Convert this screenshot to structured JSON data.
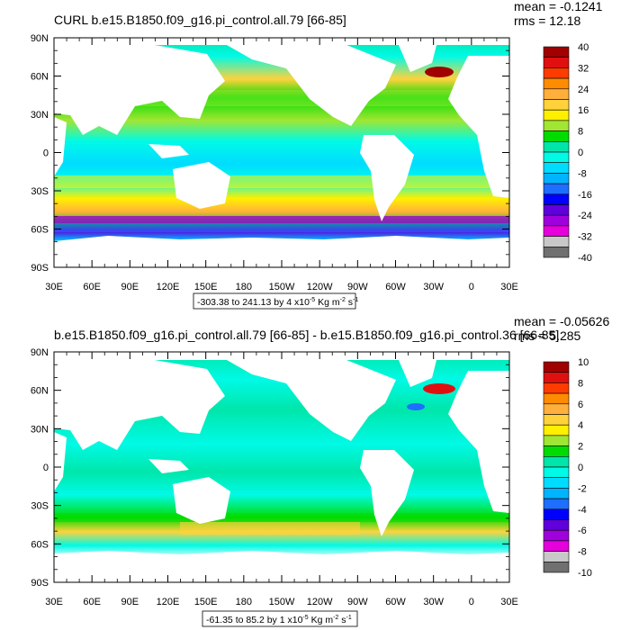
{
  "chart_data": [
    {
      "type": "heatmap",
      "title": "CURL b.e15.B1850.f09_g16.pi_control.all.79 [66-85]",
      "stats": {
        "mean": "mean = -0.1241",
        "rms": "rms = 12.18"
      },
      "y_ticks": [
        "90N",
        "60N",
        "30N",
        "0",
        "30S",
        "60S",
        "90S"
      ],
      "x_ticks": [
        "30E",
        "60E",
        "90E",
        "120E",
        "150E",
        "180",
        "150W",
        "120W",
        "90W",
        "60W",
        "30W",
        "0",
        "30E"
      ],
      "contour_info": "-303.38 to 241.13 by 4 x10",
      "contour_exp": "-5",
      "contour_units_a": " Kg m",
      "contour_units_exp_a": "-2",
      "contour_units_b": " s",
      "contour_units_exp_b": "-1",
      "colorbar": {
        "labels": [
          "40",
          "32",
          "24",
          "16",
          "8",
          "0",
          "-8",
          "-16",
          "-24",
          "-32",
          "-40"
        ],
        "colors": [
          "#a00000",
          "#e01010",
          "#ff3c00",
          "#ff8c00",
          "#ffb03c",
          "#ffd23c",
          "#fff000",
          "#a0e632",
          "#00dc00",
          "#00e6aa",
          "#00fae6",
          "#00dcff",
          "#00b4ff",
          "#1e6eff",
          "#0000ff",
          "#6000dc",
          "#a000dc",
          "#e600dc",
          "#c8c8c8",
          "#707070"
        ]
      },
      "land_color": "#ffffff"
    },
    {
      "type": "heatmap",
      "title": "b.e15.B1850.f09_g16.pi_control.all.79 [66-85] - b.e15.B1850.f09_g16.pi_control.36 [66-85]",
      "stats": {
        "mean": "mean = -0.05626",
        "rms": "rms = 5.285"
      },
      "y_ticks": [
        "90N",
        "60N",
        "30N",
        "0",
        "30S",
        "60S",
        "90S"
      ],
      "x_ticks": [
        "30E",
        "60E",
        "90E",
        "120E",
        "150E",
        "180",
        "150W",
        "120W",
        "90W",
        "60W",
        "30W",
        "0",
        "30E"
      ],
      "contour_info": "-61.35 to 85.2 by 1 x10",
      "contour_exp": "-5",
      "contour_units_a": " Kg m",
      "contour_units_exp_a": "-2",
      "contour_units_b": " s",
      "contour_units_exp_b": "-1",
      "colorbar": {
        "labels": [
          "10",
          "8",
          "6",
          "4",
          "2",
          "0",
          "-2",
          "-4",
          "-6",
          "-8",
          "-10"
        ],
        "colors": [
          "#a00000",
          "#e01010",
          "#ff3c00",
          "#ff8c00",
          "#ffb03c",
          "#ffd23c",
          "#fff000",
          "#a0e632",
          "#00dc00",
          "#00e6aa",
          "#00fae6",
          "#00dcff",
          "#00b4ff",
          "#1e6eff",
          "#0000ff",
          "#6000dc",
          "#a000dc",
          "#e600dc",
          "#c8c8c8",
          "#707070"
        ]
      },
      "land_color": "#ffffff"
    }
  ]
}
